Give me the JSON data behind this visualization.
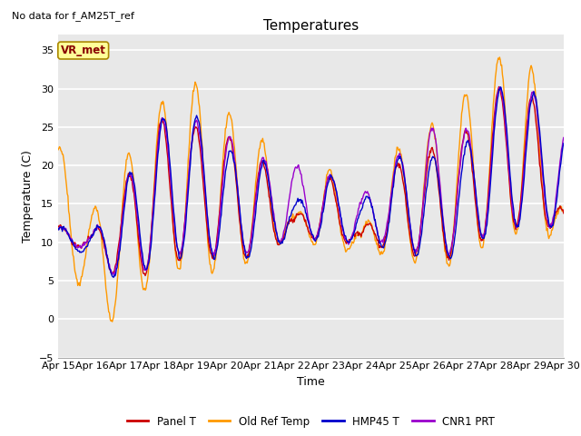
{
  "title": "Temperatures",
  "xlabel": "Time",
  "ylabel": "Temperature (C)",
  "ylim": [
    -5,
    37
  ],
  "xlim": [
    0,
    360
  ],
  "background_color": "#e8e8e8",
  "grid_color": "white",
  "no_data_text": "No data for f_AM25T_ref",
  "vr_met_label": "VR_met",
  "legend_entries": [
    "Panel T",
    "Old Ref Temp",
    "HMP45 T",
    "CNR1 PRT"
  ],
  "line_colors": [
    "#cc0000",
    "#ff9900",
    "#0000cc",
    "#9900cc"
  ],
  "xtick_labels": [
    "Apr 15",
    "Apr 16",
    "Apr 17",
    "Apr 18",
    "Apr 19",
    "Apr 20",
    "Apr 21",
    "Apr 22",
    "Apr 23",
    "Apr 24",
    "Apr 25",
    "Apr 26",
    "Apr 27",
    "Apr 28",
    "Apr 29",
    "Apr 30"
  ],
  "xtick_positions": [
    0,
    24,
    48,
    72,
    96,
    120,
    144,
    168,
    192,
    216,
    240,
    264,
    288,
    312,
    336,
    360
  ],
  "ytick_positions": [
    -5,
    0,
    5,
    10,
    15,
    20,
    25,
    30,
    35
  ],
  "peaks_red": [
    12,
    11,
    18,
    26,
    25,
    24,
    21,
    13,
    19,
    11,
    20,
    22,
    24,
    30,
    30,
    14
  ],
  "troughs_red": [
    10,
    9,
    4,
    7,
    8,
    8,
    8,
    11,
    10,
    10,
    9,
    8,
    8,
    12,
    12,
    12
  ],
  "peaks_orange": [
    23,
    14,
    21,
    28,
    31,
    27,
    24,
    13,
    20,
    11,
    22,
    25,
    29,
    34,
    34,
    14
  ],
  "troughs_orange": [
    10,
    1,
    -1,
    7,
    6,
    6,
    8,
    11,
    9,
    9,
    8,
    7,
    7,
    11,
    11,
    11
  ],
  "peaks_blue": [
    12,
    11,
    18,
    26,
    27,
    22,
    21,
    15,
    19,
    15,
    21,
    21,
    22,
    30,
    30,
    25
  ],
  "troughs_blue": [
    10,
    8,
    4,
    8,
    8,
    8,
    8,
    11,
    10,
    10,
    9,
    8,
    8,
    12,
    12,
    12
  ],
  "peaks_purple": [
    12,
    11,
    18,
    26,
    26,
    24,
    21,
    20,
    19,
    16,
    21,
    25,
    24,
    30,
    30,
    25
  ],
  "troughs_purple": [
    10,
    9,
    4,
    8,
    9,
    8,
    9,
    11,
    10,
    10,
    10,
    8,
    9,
    12,
    12,
    12
  ]
}
